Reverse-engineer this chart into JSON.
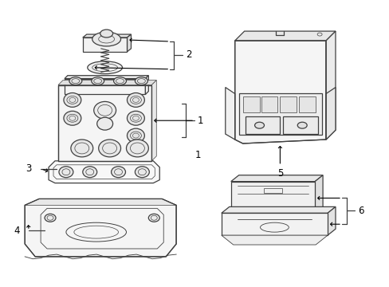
{
  "bg_color": "#ffffff",
  "line_color": "#404040",
  "lw": 0.9,
  "fig_w": 4.89,
  "fig_h": 3.6,
  "dpi": 100
}
